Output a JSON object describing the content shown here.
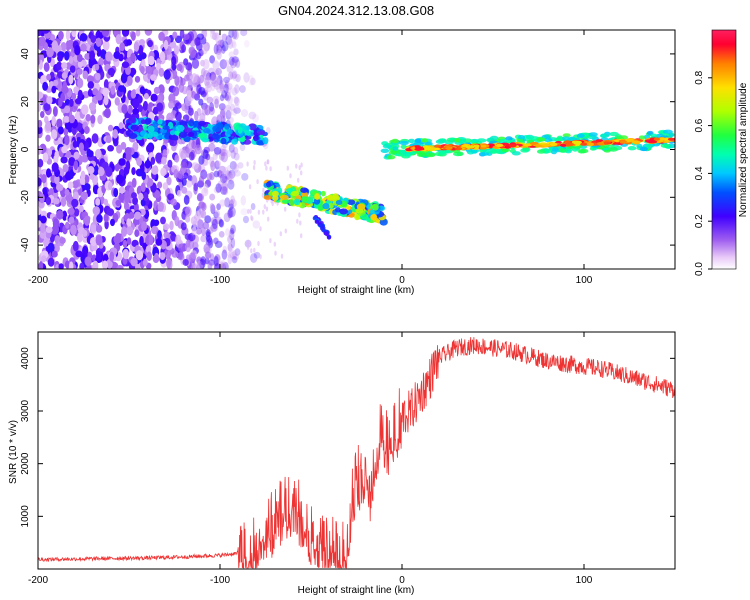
{
  "title": "GN04.2024.312.13.08.G08",
  "chart_data": [
    {
      "type": "heatmap",
      "xlabel": "Height of straight line (km)",
      "ylabel": "Frequency (Hz)",
      "xlim": [
        -200,
        150
      ],
      "ylim": [
        -50,
        50
      ],
      "xticks": [
        -200,
        -100,
        0,
        100
      ],
      "yticks": [
        -40,
        -20,
        0,
        20,
        40
      ],
      "colorbar": {
        "label": "Normalized spectral amplitude",
        "range": [
          0,
          1
        ],
        "ticks": [
          0.0,
          0.2,
          0.4,
          0.6,
          0.8
        ]
      },
      "features": [
        {
          "x_range": [
            -200,
            -90
          ],
          "description_freq": "broadband noise across -50..50 Hz"
        },
        {
          "x_range": [
            -150,
            -75
          ],
          "freq_hz": [
            9,
            6
          ]
        },
        {
          "x_range": [
            -75,
            -10
          ],
          "freq_hz": [
            -17,
            -27
          ]
        },
        {
          "x_range": [
            -10,
            150
          ],
          "freq_hz": [
            0,
            4
          ]
        }
      ]
    },
    {
      "type": "line",
      "xlabel": "Height of straight line (km)",
      "ylabel": "SNR (10 * v/v)",
      "xlim": [
        -200,
        150
      ],
      "ylim": [
        0,
        4500
      ],
      "xticks": [
        -200,
        -100,
        0,
        100
      ],
      "yticks": [
        1000,
        2000,
        3000,
        4000
      ],
      "color": "#ee3333",
      "series": [
        {
          "x": [
            -200,
            -180,
            -160,
            -140,
            -120,
            -100,
            -90,
            -82,
            -75,
            -70,
            -65,
            -60,
            -55,
            -50,
            -45,
            -40,
            -35,
            -30,
            -28,
            -25,
            -22,
            -20,
            -18,
            -15,
            -12,
            -10,
            -8,
            -5,
            0,
            5,
            10,
            15,
            20,
            25,
            30,
            40,
            50,
            60,
            70,
            80,
            90,
            100,
            110,
            120,
            130,
            140,
            150
          ],
          "y": [
            180,
            190,
            200,
            210,
            230,
            260,
            300,
            400,
            700,
            900,
            1150,
            1250,
            1000,
            700,
            500,
            400,
            250,
            300,
            1200,
            1800,
            1600,
            2200,
            1300,
            2200,
            2500,
            2600,
            2400,
            2600,
            2900,
            3000,
            3300,
            3600,
            4000,
            4100,
            4200,
            4250,
            4200,
            4150,
            4050,
            3950,
            3900,
            3850,
            3800,
            3700,
            3600,
            3500,
            3400
          ]
        }
      ]
    }
  ]
}
